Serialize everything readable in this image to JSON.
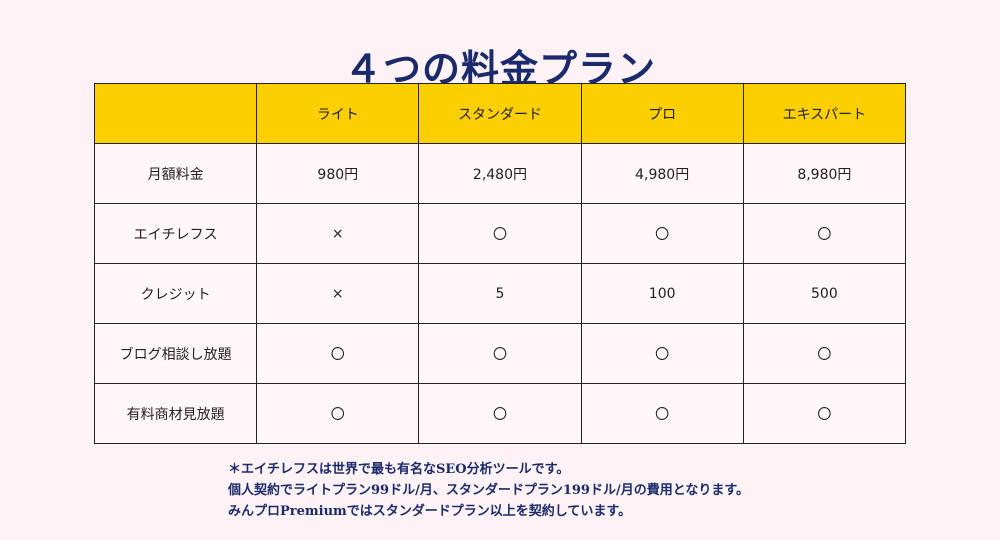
{
  "title": "４つの料金プラン",
  "table": {
    "headers": [
      "",
      "ライト",
      "スタンダード",
      "プロ",
      "エキスパート"
    ],
    "rows": [
      {
        "label": "月額料金",
        "values": [
          "980円",
          "2,480円",
          "4,980円",
          "8,980円"
        ]
      },
      {
        "label": "エイチレフス",
        "values": [
          "×",
          "〇",
          "〇",
          "〇"
        ]
      },
      {
        "label": "クレジット",
        "values": [
          "×",
          "5",
          "100",
          "500"
        ]
      },
      {
        "label": "ブログ相談し放題",
        "values": [
          "〇",
          "〇",
          "〇",
          "〇"
        ]
      },
      {
        "label": "有料商材見放題",
        "values": [
          "〇",
          "〇",
          "〇",
          "〇"
        ]
      }
    ]
  },
  "notes": [
    "＊エイチレフスは世界で最も有名なSEO分析ツールです。",
    "個人契約でライトプラン99ドル/月、スタンダードプラン199ドル/月の費用となります。",
    "みんプロPremiumではスタンダードプラン以上を契約しています。"
  ],
  "colors": {
    "background": "#fdf2f6",
    "header_fill": "#fcd000",
    "title": "#1a2a6c"
  }
}
